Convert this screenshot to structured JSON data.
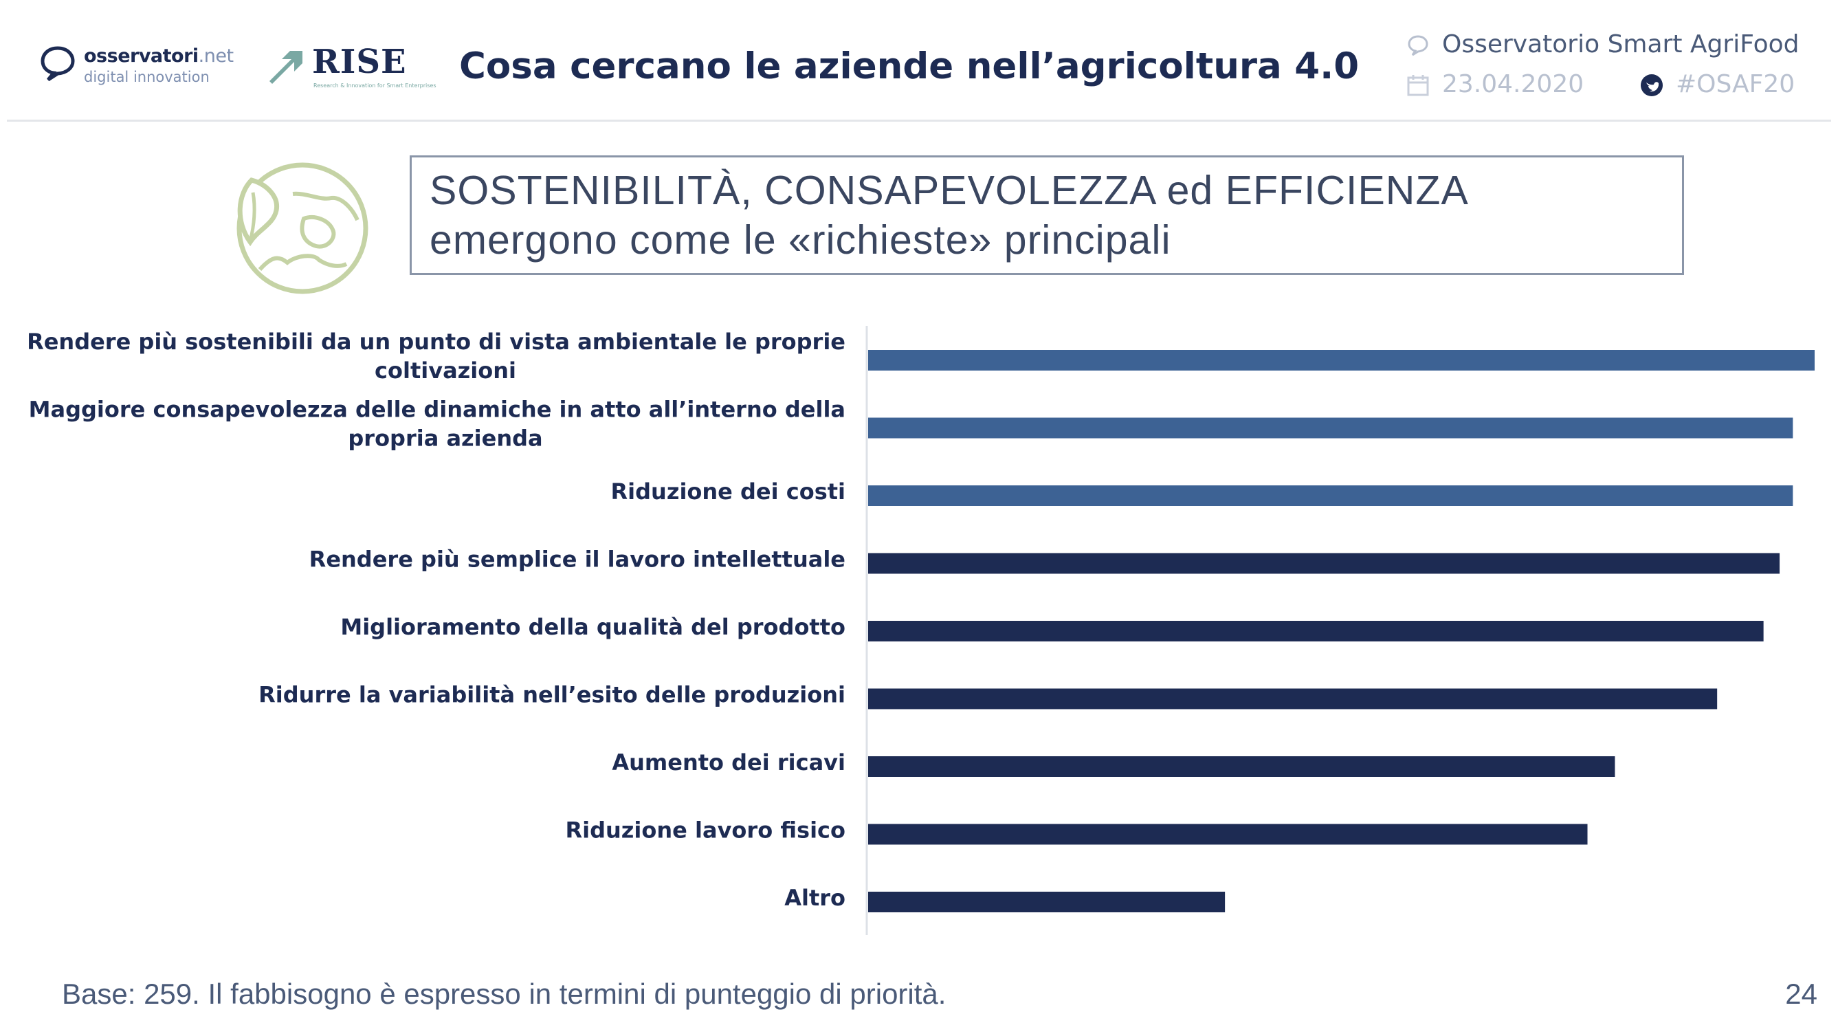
{
  "header": {
    "logos": {
      "osservatori": {
        "name": "osservatori",
        "name_suffix": ".net",
        "subtitle": "digital innovation"
      },
      "rise": {
        "name": "RISE",
        "tagline": "Research & Innovation for Smart Enterprises"
      }
    },
    "title": "Cosa cercano le aziende nell’agricoltura 4.0",
    "event": "Osservatorio Smart AgriFood",
    "date": "23.04.2020",
    "hashtag": "#OSAF20"
  },
  "headline": {
    "line1": "SOSTENIBILITÀ, CONSAPEVOLEZZA ed EFFICIENZA",
    "line2": "emergono come le «richieste» principali"
  },
  "chart_data": {
    "type": "bar",
    "orientation": "horizontal",
    "categories": [
      "Rendere più sostenibili da un punto di vista ambientale le proprie coltivazioni",
      "Maggiore consapevolezza delle dinamiche in atto all’interno della propria azienda",
      "Riduzione dei costi",
      "Rendere più semplice il lavoro intellettuale",
      "Miglioramento della qualità del prodotto",
      "Ridurre la variabilità nell’esito delle produzioni",
      "Aumento dei ricavi",
      "Riduzione lavoro fisico",
      "Altro"
    ],
    "category_lines": [
      [
        "Rendere più sostenibili da un punto di vista ambientale le proprie",
        "coltivazioni"
      ],
      [
        "Maggiore consapevolezza delle dinamiche in atto all’interno della",
        "propria azienda"
      ],
      [
        "Riduzione dei costi"
      ],
      [
        "Rendere più semplice il lavoro intellettuale"
      ],
      [
        "Miglioramento della qualità del prodotto"
      ],
      [
        "Ridurre la variabilità nell’esito delle produzioni"
      ],
      [
        "Aumento dei ricavi"
      ],
      [
        "Riduzione lavoro fisico"
      ],
      [
        "Altro"
      ]
    ],
    "values": [
      100,
      97.7,
      97.7,
      96.3,
      94.6,
      89.7,
      78.9,
      76.0,
      37.7
    ],
    "xlim": [
      0,
      100
    ],
    "highlighted_count": 3,
    "colors": {
      "highlight": "#3d6294",
      "default": "#1d2b53",
      "label": "#1d2b53",
      "axis": "#dde1e7"
    },
    "title": "",
    "xlabel": "",
    "ylabel": "",
    "grid": false,
    "legend": "none"
  },
  "footer": {
    "note": "Base: 259. Il fabbisogno è espresso in termini di punteggio di priorità.",
    "page_number": "24"
  },
  "colors": {
    "navy": "#1d2b53",
    "accent_green": "#c5d3a5",
    "teal": "#7aa8a3"
  }
}
